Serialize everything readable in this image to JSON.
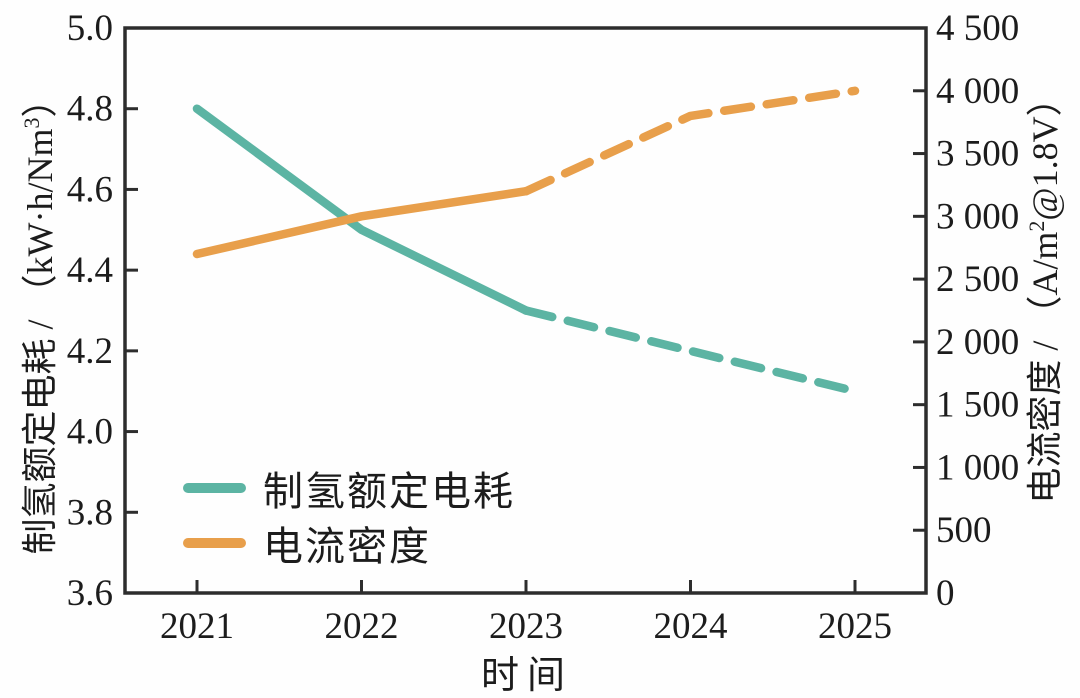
{
  "chart_data": {
    "type": "line",
    "x": [
      2021,
      2022,
      2023,
      2024,
      2025
    ],
    "x_tick_labels": [
      "2021",
      "2022",
      "2023",
      "2024",
      "2025"
    ],
    "xlabel": "时间",
    "left_axis": {
      "title_prefix": "制氢额定电耗 / （kW·h/Nm",
      "title_sup": "3",
      "title_suffix": "）",
      "range": [
        3.6,
        5.0
      ],
      "tick_values": [
        3.6,
        3.8,
        4.0,
        4.2,
        4.4,
        4.6,
        4.8,
        5.0
      ],
      "tick_labels": [
        "3.6",
        "3.8",
        "4.0",
        "4.2",
        "4.4",
        "4.6",
        "4.8",
        "5.0"
      ]
    },
    "right_axis": {
      "title_prefix": "电流密度 / （A/m",
      "title_sup": "2",
      "title_suffix": "@1.8V）",
      "range": [
        0,
        4500
      ],
      "tick_values": [
        0,
        500,
        1000,
        1500,
        2000,
        2500,
        3000,
        3500,
        4000,
        4500
      ],
      "tick_labels": [
        "0",
        "500",
        "1 000",
        "1 500",
        "2 000",
        "2 500",
        "3 000",
        "3 500",
        "4 000",
        "4 500"
      ]
    },
    "series": [
      {
        "name": "制氢额定电耗",
        "axis": "left",
        "color": "#5CB4A3",
        "solid_until_x": 2023,
        "values": [
          4.8,
          4.5,
          4.3,
          4.2,
          4.1
        ]
      },
      {
        "name": "电流密度",
        "axis": "right",
        "color": "#E89F4B",
        "solid_until_x": 2023,
        "values": [
          2700,
          3000,
          3200,
          3800,
          4000
        ]
      }
    ],
    "legend_position": "inside-lower-left",
    "grid": "off",
    "frame_color": "#2d2d2d",
    "text_color": "#1c1c1c"
  }
}
